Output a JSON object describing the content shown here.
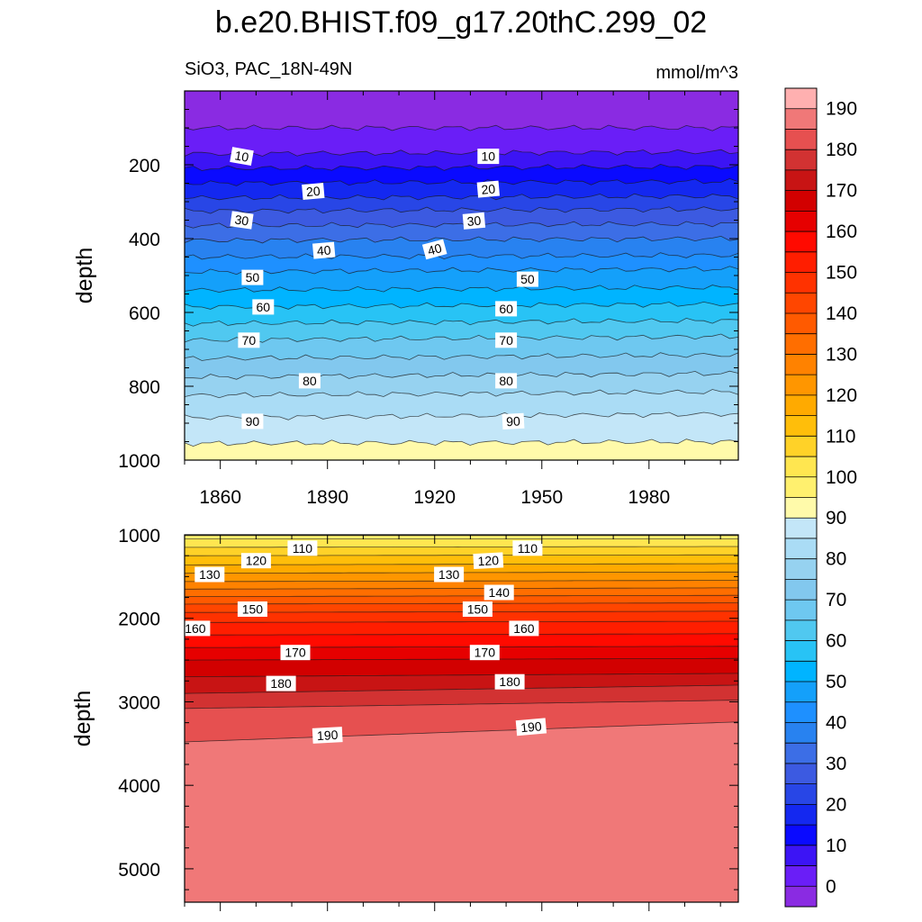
{
  "title": "b.e20.BHIST.f09_g17.20thC.299_02",
  "subtitle_left": "SiO3, PAC_18N-49N",
  "units": "mmol/m^3",
  "chart_data": {
    "type": "heatmap",
    "subtype": "filled-contour depth-time section",
    "title": "b.e20.BHIST.f09_g17.20thC.299_02",
    "variable": "SiO3",
    "region": "PAC_18N-49N",
    "units": "mmol/m^3",
    "xlabel": "",
    "ylabel": "depth",
    "xlim": [
      1850,
      2005
    ],
    "x_ticks": [
      1860,
      1890,
      1920,
      1950,
      1980
    ],
    "x_tick_labels": [
      "1860",
      "1890",
      "1920",
      "1950",
      "1980"
    ],
    "colorbar": {
      "levels": [
        0,
        5,
        10,
        15,
        20,
        25,
        30,
        35,
        40,
        45,
        50,
        55,
        60,
        65,
        70,
        75,
        80,
        85,
        90,
        95,
        100,
        105,
        110,
        115,
        120,
        125,
        130,
        135,
        140,
        145,
        150,
        155,
        160,
        165,
        170,
        175,
        180,
        185,
        190,
        195
      ],
      "tick_labels": [
        "0",
        "10",
        "20",
        "30",
        "40",
        "50",
        "60",
        "70",
        "80",
        "90",
        "100",
        "110",
        "120",
        "130",
        "140",
        "150",
        "160",
        "170",
        "180",
        "190"
      ],
      "colors": [
        "#8a2be2",
        "#6a1ef7",
        "#3c14f5",
        "#0a0aff",
        "#1428f0",
        "#2846e6",
        "#3c5ae1",
        "#3c6ee6",
        "#2882f0",
        "#1e90ff",
        "#14a0fa",
        "#00b4ff",
        "#28c3f5",
        "#50c8f0",
        "#6ec8f0",
        "#82c8ee",
        "#96d2f0",
        "#aadcf5",
        "#c3e6f8",
        "#fffaaa",
        "#fff06e",
        "#ffe650",
        "#ffd228",
        "#ffbe0a",
        "#ffaa00",
        "#ff9600",
        "#ff8200",
        "#ff6e00",
        "#ff5a00",
        "#ff4600",
        "#ff3200",
        "#ff1e00",
        "#ff0a00",
        "#e60000",
        "#d20000",
        "#c81414",
        "#d23232",
        "#e65050",
        "#f07878",
        "#ffb0b0"
      ]
    },
    "panels": [
      {
        "name": "upper",
        "ylim": [
          0,
          1000
        ],
        "y_ticks": [
          200,
          400,
          600,
          800,
          1000
        ],
        "y_tick_labels": [
          "200",
          "400",
          "600",
          "800",
          "1000"
        ],
        "ylabel": "depth",
        "x_tick_labels_shown": true,
        "depth_top": 50,
        "contour_depths": [
          {
            "value": 5,
            "depth": 100,
            "slope": 0
          },
          {
            "value": 10,
            "depth": 170,
            "slope": 5
          },
          {
            "value": 15,
            "depth": 210,
            "slope": 5
          },
          {
            "value": 20,
            "depth": 250,
            "slope": 5
          },
          {
            "value": 25,
            "depth": 290,
            "slope": 5
          },
          {
            "value": 30,
            "depth": 325,
            "slope": 5
          },
          {
            "value": 35,
            "depth": 365,
            "slope": 5
          },
          {
            "value": 40,
            "depth": 405,
            "slope": 5
          },
          {
            "value": 45,
            "depth": 450,
            "slope": 5
          },
          {
            "value": 50,
            "depth": 490,
            "slope": 8
          },
          {
            "value": 55,
            "depth": 540,
            "slope": 8
          },
          {
            "value": 60,
            "depth": 585,
            "slope": 8
          },
          {
            "value": 65,
            "depth": 630,
            "slope": 8
          },
          {
            "value": 70,
            "depth": 675,
            "slope": 10
          },
          {
            "value": 75,
            "depth": 725,
            "slope": 10
          },
          {
            "value": 80,
            "depth": 775,
            "slope": 10
          },
          {
            "value": 85,
            "depth": 825,
            "slope": 10
          },
          {
            "value": 90,
            "depth": 885,
            "slope": 10
          },
          {
            "value": 95,
            "depth": 955,
            "slope": 5
          }
        ],
        "labels": [
          {
            "text": "10",
            "year": 1866,
            "depth": 177,
            "rot": 10
          },
          {
            "text": "10",
            "year": 1935,
            "depth": 177,
            "rot": 0
          },
          {
            "text": "20",
            "year": 1886,
            "depth": 272,
            "rot": -5
          },
          {
            "text": "20",
            "year": 1935,
            "depth": 266,
            "rot": -5
          },
          {
            "text": "30",
            "year": 1866,
            "depth": 350,
            "rot": 8
          },
          {
            "text": "30",
            "year": 1931,
            "depth": 352,
            "rot": -5
          },
          {
            "text": "40",
            "year": 1889,
            "depth": 432,
            "rot": -5
          },
          {
            "text": "40",
            "year": 1920,
            "depth": 429,
            "rot": -15
          },
          {
            "text": "50",
            "year": 1869,
            "depth": 505,
            "rot": 0
          },
          {
            "text": "50",
            "year": 1946,
            "depth": 510,
            "rot": 0
          },
          {
            "text": "60",
            "year": 1872,
            "depth": 585,
            "rot": 0
          },
          {
            "text": "60",
            "year": 1940,
            "depth": 590,
            "rot": 0
          },
          {
            "text": "70",
            "year": 1868,
            "depth": 675,
            "rot": 0
          },
          {
            "text": "70",
            "year": 1940,
            "depth": 675,
            "rot": 0
          },
          {
            "text": "80",
            "year": 1885,
            "depth": 785,
            "rot": 0
          },
          {
            "text": "80",
            "year": 1940,
            "depth": 785,
            "rot": 0
          },
          {
            "text": "90",
            "year": 1869,
            "depth": 895,
            "rot": 0
          },
          {
            "text": "90",
            "year": 1942,
            "depth": 895,
            "rot": -3
          }
        ]
      },
      {
        "name": "lower",
        "ylim": [
          1000,
          5400
        ],
        "y_ticks": [
          1000,
          2000,
          3000,
          4000,
          5000
        ],
        "y_tick_labels": [
          "1000",
          "2000",
          "3000",
          "4000",
          "5000"
        ],
        "ylabel": "depth",
        "x_tick_labels_shown": false,
        "depth_top": 1000,
        "contour_depths": [
          {
            "value": 100,
            "depth": 1010,
            "slope": 0
          },
          {
            "value": 105,
            "depth": 1050,
            "slope": 0
          },
          {
            "value": 110,
            "depth": 1150,
            "slope": 10
          },
          {
            "value": 115,
            "depth": 1250,
            "slope": 10
          },
          {
            "value": 120,
            "depth": 1360,
            "slope": 15
          },
          {
            "value": 125,
            "depth": 1460,
            "slope": 15
          },
          {
            "value": 130,
            "depth": 1560,
            "slope": 15
          },
          {
            "value": 135,
            "depth": 1650,
            "slope": 15
          },
          {
            "value": 140,
            "depth": 1740,
            "slope": 15
          },
          {
            "value": 145,
            "depth": 1830,
            "slope": 15
          },
          {
            "value": 150,
            "depth": 1930,
            "slope": 15
          },
          {
            "value": 155,
            "depth": 2050,
            "slope": 15
          },
          {
            "value": 160,
            "depth": 2200,
            "slope": 15
          },
          {
            "value": 165,
            "depth": 2350,
            "slope": 15
          },
          {
            "value": 170,
            "depth": 2500,
            "slope": 20
          },
          {
            "value": 175,
            "depth": 2700,
            "slope": 40
          },
          {
            "value": 180,
            "depth": 2900,
            "slope": 100
          },
          {
            "value": 185,
            "depth": 3080,
            "slope": 100
          },
          {
            "value": 190,
            "depth": 3480,
            "slope": 240
          }
        ],
        "labels": [
          {
            "text": "110",
            "year": 1883,
            "depth": 1160,
            "rot": 0
          },
          {
            "text": "110",
            "year": 1946,
            "depth": 1160,
            "rot": 0
          },
          {
            "text": "120",
            "year": 1870,
            "depth": 1310,
            "rot": 0
          },
          {
            "text": "120",
            "year": 1935,
            "depth": 1310,
            "rot": -3
          },
          {
            "text": "130",
            "year": 1857,
            "depth": 1475,
            "rot": 0
          },
          {
            "text": "130",
            "year": 1924,
            "depth": 1475,
            "rot": 0
          },
          {
            "text": "140",
            "year": 1938,
            "depth": 1690,
            "rot": 0
          },
          {
            "text": "150",
            "year": 1869,
            "depth": 1890,
            "rot": 0
          },
          {
            "text": "150",
            "year": 1932,
            "depth": 1890,
            "rot": 0
          },
          {
            "text": "160",
            "year": 1853,
            "depth": 2120,
            "rot": 0
          },
          {
            "text": "160",
            "year": 1945,
            "depth": 2120,
            "rot": 0
          },
          {
            "text": "170",
            "year": 1881,
            "depth": 2410,
            "rot": 0
          },
          {
            "text": "170",
            "year": 1934,
            "depth": 2410,
            "rot": 0
          },
          {
            "text": "180",
            "year": 1877,
            "depth": 2780,
            "rot": 0
          },
          {
            "text": "180",
            "year": 1941,
            "depth": 2760,
            "rot": 0
          },
          {
            "text": "190",
            "year": 1890,
            "depth": 3400,
            "rot": -3
          },
          {
            "text": "190",
            "year": 1947,
            "depth": 3300,
            "rot": -5
          }
        ]
      }
    ]
  }
}
